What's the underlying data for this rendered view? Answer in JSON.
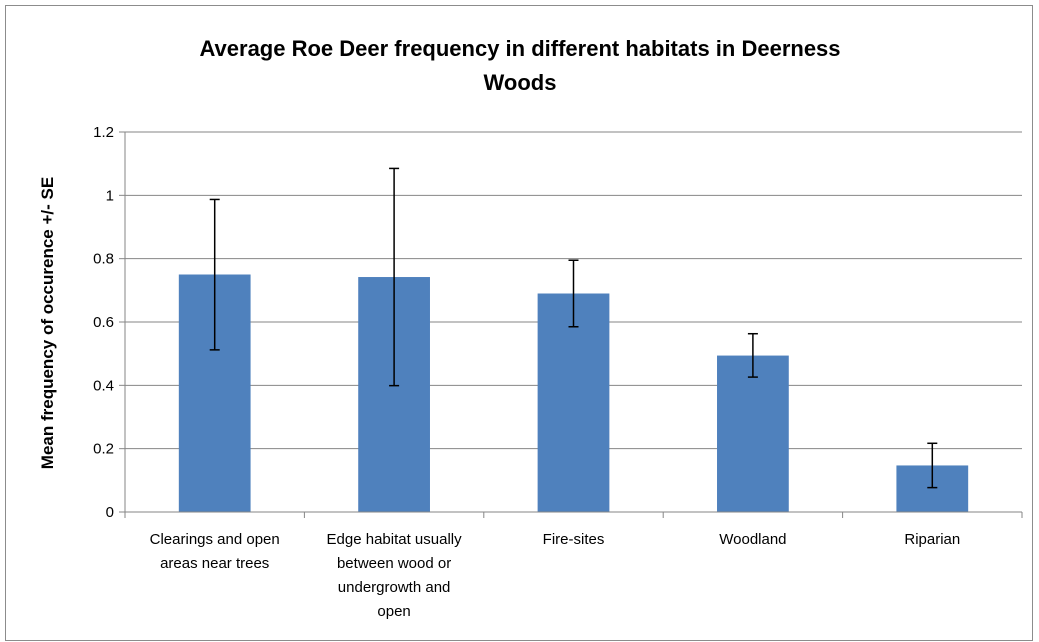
{
  "chart_data": {
    "type": "bar",
    "title_lines": [
      "Average Roe Deer frequency in different habitats in Deerness",
      "Woods"
    ],
    "xlabel": "",
    "ylabel": "Mean frequency of occurence +/- SE",
    "ylim": [
      0,
      1.2
    ],
    "yticks": [
      "0",
      "0.2",
      "0.4",
      "0.6",
      "0.8",
      "1",
      "1.2"
    ],
    "grid": true,
    "bar_color": "#4f81bd",
    "categories": [
      [
        "Clearings and open",
        "areas near trees"
      ],
      [
        "Edge habitat usually",
        "between wood or",
        "undergrowth and",
        "open"
      ],
      [
        "Fire-sites"
      ],
      [
        "Woodland"
      ],
      [
        "Riparian"
      ]
    ],
    "values": [
      0.75,
      0.742,
      0.69,
      0.494,
      0.147
    ],
    "error_low": [
      0.512,
      0.399,
      0.585,
      0.426,
      0.077
    ],
    "error_high": [
      0.987,
      1.085,
      0.795,
      0.563,
      0.217
    ]
  }
}
